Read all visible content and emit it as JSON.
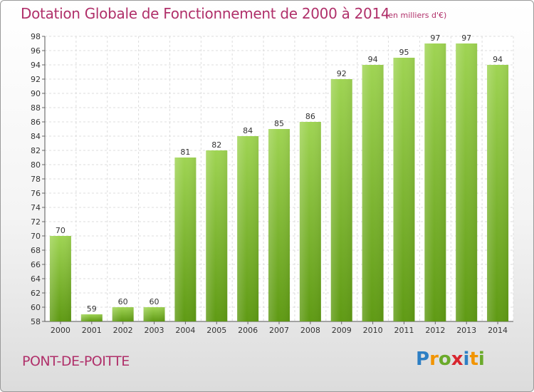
{
  "header": {
    "title": "Dotation Globale de Fonctionnement de 2000 à 2014",
    "unit": "(en milliers d'€)"
  },
  "footer": {
    "town": "PONT-DE-POITTE",
    "logo_text": "Proxiti"
  },
  "colors": {
    "bar_top": "#9fd453",
    "bar_bottom": "#5f9a14",
    "accent": "#b0306a",
    "grid": "#dddddd"
  },
  "chart_data": {
    "type": "bar",
    "title": "Dotation Globale de Fonctionnement de 2000 à 2014",
    "subtitle": "(en milliers d'€)",
    "xlabel": "",
    "ylabel": "",
    "categories": [
      "2000",
      "2001",
      "2002",
      "2003",
      "2004",
      "2005",
      "2006",
      "2007",
      "2008",
      "2009",
      "2010",
      "2011",
      "2012",
      "2013",
      "2014"
    ],
    "values": [
      70,
      59,
      60,
      60,
      81,
      82,
      84,
      85,
      86,
      92,
      94,
      95,
      97,
      97,
      94
    ],
    "ylim": [
      58,
      98
    ],
    "yticks": [
      58,
      60,
      62,
      64,
      66,
      68,
      70,
      72,
      74,
      76,
      78,
      80,
      82,
      84,
      86,
      88,
      90,
      92,
      94,
      96,
      98
    ],
    "grid": true,
    "grid_style": "dashed"
  }
}
